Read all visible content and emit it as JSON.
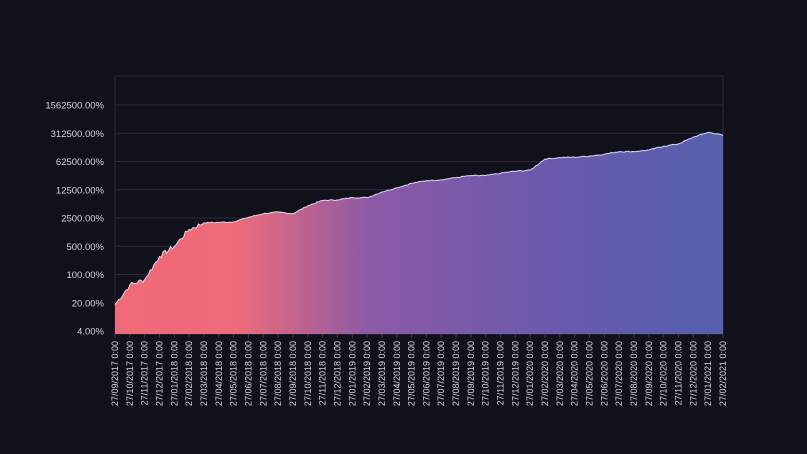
{
  "chart_data": {
    "type": "area",
    "title": "",
    "xlabel": "",
    "ylabel": "",
    "y_scale": "log",
    "grid": true,
    "legend": "none",
    "y_ticks": [
      {
        "value": 4,
        "label": "4.00%"
      },
      {
        "value": 20,
        "label": "20.00%"
      },
      {
        "value": 100,
        "label": "100.00%"
      },
      {
        "value": 500,
        "label": "500.00%"
      },
      {
        "value": 2500,
        "label": "2500.00%"
      },
      {
        "value": 12500,
        "label": "12500.00%"
      },
      {
        "value": 62500,
        "label": "62500.00%"
      },
      {
        "value": 312500,
        "label": "312500.00%"
      },
      {
        "value": 1562500,
        "label": "1562500.00%"
      }
    ],
    "x_tick_labels": [
      "27/09/2017 0:00",
      "27/10/2017 0:00",
      "27/11/2017 0:00",
      "27/12/2017 0:00",
      "27/01/2018 0:00",
      "27/02/2018 0:00",
      "27/03/2018 0:00",
      "27/04/2018 0:00",
      "27/05/2018 0:00",
      "27/06/2018 0:00",
      "27/07/2018 0:00",
      "27/08/2018 0:00",
      "27/09/2018 0:00",
      "27/10/2018 0:00",
      "27/11/2018 0:00",
      "27/12/2018 0:00",
      "27/01/2019 0:00",
      "27/02/2019 0:00",
      "27/03/2019 0:00",
      "27/04/2019 0:00",
      "27/05/2019 0:00",
      "27/06/2019 0:00",
      "27/07/2019 0:00",
      "27/08/2019 0:00",
      "27/09/2019 0:00",
      "27/10/2019 0:00",
      "27/11/2019 0:00",
      "27/12/2019 0:00",
      "27/01/2020 0:00",
      "27/02/2020 0:00",
      "27/03/2020 0:00",
      "27/04/2020 0:00",
      "27/05/2020 0:00",
      "27/06/2020 0:00",
      "27/07/2020 0:00",
      "27/08/2020 0:00",
      "27/09/2020 0:00",
      "27/10/2020 0:00",
      "27/11/2020 0:00",
      "27/12/2020 0:00",
      "27/01/2021 0:00",
      "27/02/2021 0:00"
    ],
    "series": [
      {
        "x": [
          "27/09/2017",
          "27/10/2017",
          "27/11/2017",
          "27/12/2017",
          "27/01/2018",
          "27/02/2018",
          "27/03/2018",
          "27/04/2018",
          "27/05/2018",
          "27/06/2018",
          "27/07/2018",
          "27/08/2018",
          "27/09/2018",
          "27/10/2018",
          "27/11/2018",
          "27/12/2018",
          "27/01/2019",
          "27/02/2019",
          "27/03/2019",
          "27/04/2019",
          "27/05/2019",
          "27/06/2019",
          "27/07/2019",
          "27/08/2019",
          "27/09/2019",
          "27/10/2019",
          "27/11/2019",
          "27/12/2019",
          "27/01/2020",
          "27/02/2020",
          "27/03/2020",
          "27/04/2020",
          "27/05/2020",
          "27/06/2020",
          "27/07/2020",
          "27/08/2020",
          "27/09/2020",
          "27/10/2020",
          "27/11/2020",
          "27/12/2020",
          "27/01/2021",
          "27/02/2021"
        ],
        "values": [
          18,
          55,
          75,
          280,
          500,
          1300,
          1900,
          1950,
          2000,
          2600,
          3200,
          3500,
          3200,
          5000,
          6800,
          7000,
          8000,
          8000,
          11000,
          14000,
          18000,
          21000,
          22000,
          25000,
          28000,
          28000,
          32000,
          36000,
          38000,
          72000,
          78000,
          80000,
          85000,
          95000,
          110000,
          110000,
          120000,
          150000,
          170000,
          250000,
          330000,
          280000
        ]
      }
    ],
    "colors": {
      "background": "#11111b",
      "fill_start": "#f06a78",
      "fill_end": "#5560ad",
      "line": "#d8dbf0"
    }
  }
}
